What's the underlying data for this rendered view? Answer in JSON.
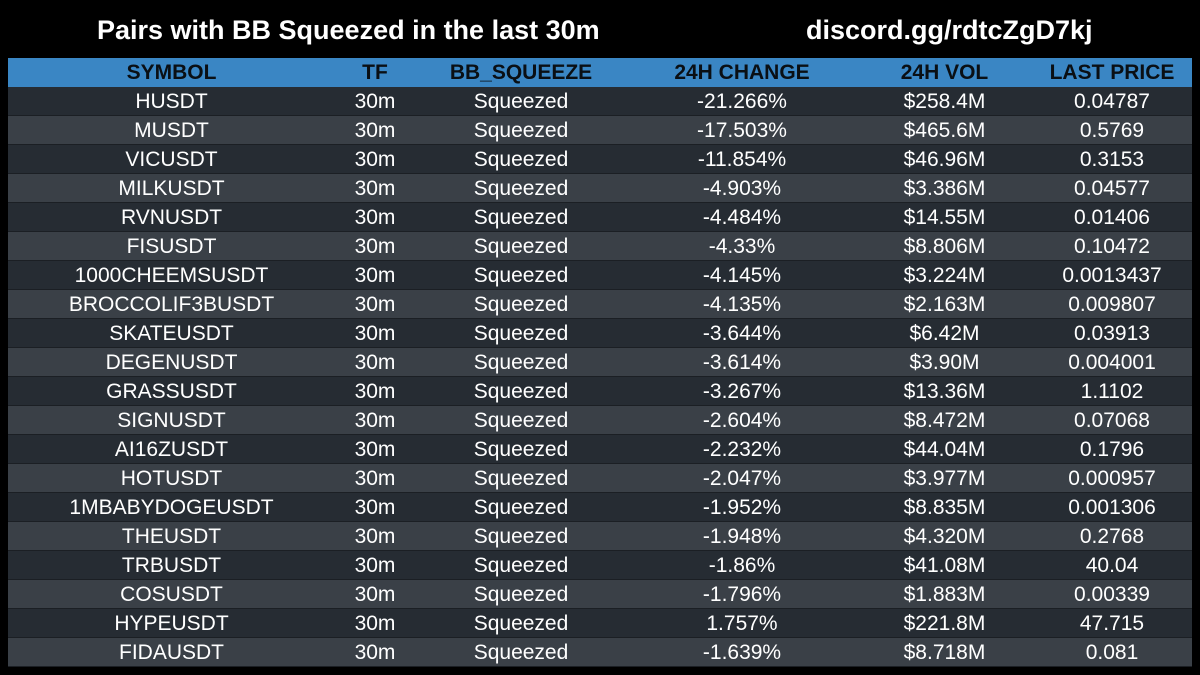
{
  "header": {
    "title": "Pairs with BB Squeezed in the last 30m",
    "invite": "discord.gg/rdtcZgD7kj"
  },
  "table": {
    "columns": [
      "SYMBOL",
      "TF",
      "BB_SQUEEZE",
      "24H CHANGE",
      "24H VOL",
      "LAST PRICE"
    ],
    "rows": [
      {
        "symbol": "HUSDT",
        "tf": "30m",
        "bb": "Squeezed",
        "change": "-21.266%",
        "vol": "$258.4M",
        "price": "0.04787"
      },
      {
        "symbol": "MUSDT",
        "tf": "30m",
        "bb": "Squeezed",
        "change": "-17.503%",
        "vol": "$465.6M",
        "price": "0.5769"
      },
      {
        "symbol": "VICUSDT",
        "tf": "30m",
        "bb": "Squeezed",
        "change": "-11.854%",
        "vol": "$46.96M",
        "price": "0.3153"
      },
      {
        "symbol": "MILKUSDT",
        "tf": "30m",
        "bb": "Squeezed",
        "change": "-4.903%",
        "vol": "$3.386M",
        "price": "0.04577"
      },
      {
        "symbol": "RVNUSDT",
        "tf": "30m",
        "bb": "Squeezed",
        "change": "-4.484%",
        "vol": "$14.55M",
        "price": "0.01406"
      },
      {
        "symbol": "FISUSDT",
        "tf": "30m",
        "bb": "Squeezed",
        "change": "-4.33%",
        "vol": "$8.806M",
        "price": "0.10472"
      },
      {
        "symbol": "1000CHEEMSUSDT",
        "tf": "30m",
        "bb": "Squeezed",
        "change": "-4.145%",
        "vol": "$3.224M",
        "price": "0.0013437"
      },
      {
        "symbol": "BROCCOLIF3BUSDT",
        "tf": "30m",
        "bb": "Squeezed",
        "change": "-4.135%",
        "vol": "$2.163M",
        "price": "0.009807"
      },
      {
        "symbol": "SKATEUSDT",
        "tf": "30m",
        "bb": "Squeezed",
        "change": "-3.644%",
        "vol": "$6.42M",
        "price": "0.03913"
      },
      {
        "symbol": "DEGENUSDT",
        "tf": "30m",
        "bb": "Squeezed",
        "change": "-3.614%",
        "vol": "$3.90M",
        "price": "0.004001"
      },
      {
        "symbol": "GRASSUSDT",
        "tf": "30m",
        "bb": "Squeezed",
        "change": "-3.267%",
        "vol": "$13.36M",
        "price": "1.1102"
      },
      {
        "symbol": "SIGNUSDT",
        "tf": "30m",
        "bb": "Squeezed",
        "change": "-2.604%",
        "vol": "$8.472M",
        "price": "0.07068"
      },
      {
        "symbol": "AI16ZUSDT",
        "tf": "30m",
        "bb": "Squeezed",
        "change": "-2.232%",
        "vol": "$44.04M",
        "price": "0.1796"
      },
      {
        "symbol": "HOTUSDT",
        "tf": "30m",
        "bb": "Squeezed",
        "change": "-2.047%",
        "vol": "$3.977M",
        "price": "0.000957"
      },
      {
        "symbol": "1MBABYDOGEUSDT",
        "tf": "30m",
        "bb": "Squeezed",
        "change": "-1.952%",
        "vol": "$8.835M",
        "price": "0.001306"
      },
      {
        "symbol": "THEUSDT",
        "tf": "30m",
        "bb": "Squeezed",
        "change": "-1.948%",
        "vol": "$4.320M",
        "price": "0.2768"
      },
      {
        "symbol": "TRBUSDT",
        "tf": "30m",
        "bb": "Squeezed",
        "change": "-1.86%",
        "vol": "$41.08M",
        "price": "40.04"
      },
      {
        "symbol": "COSUSDT",
        "tf": "30m",
        "bb": "Squeezed",
        "change": "-1.796%",
        "vol": "$1.883M",
        "price": "0.00339"
      },
      {
        "symbol": "HYPEUSDT",
        "tf": "30m",
        "bb": "Squeezed",
        "change": "1.757%",
        "vol": "$221.8M",
        "price": "47.715"
      },
      {
        "symbol": "FIDAUSDT",
        "tf": "30m",
        "bb": "Squeezed",
        "change": "-1.639%",
        "vol": "$8.718M",
        "price": "0.081"
      }
    ]
  },
  "colors": {
    "background": "#000000",
    "header_row": "#3a86c4",
    "row_dark": "#262c33",
    "row_light": "#3a4047",
    "text": "#ffffff"
  }
}
